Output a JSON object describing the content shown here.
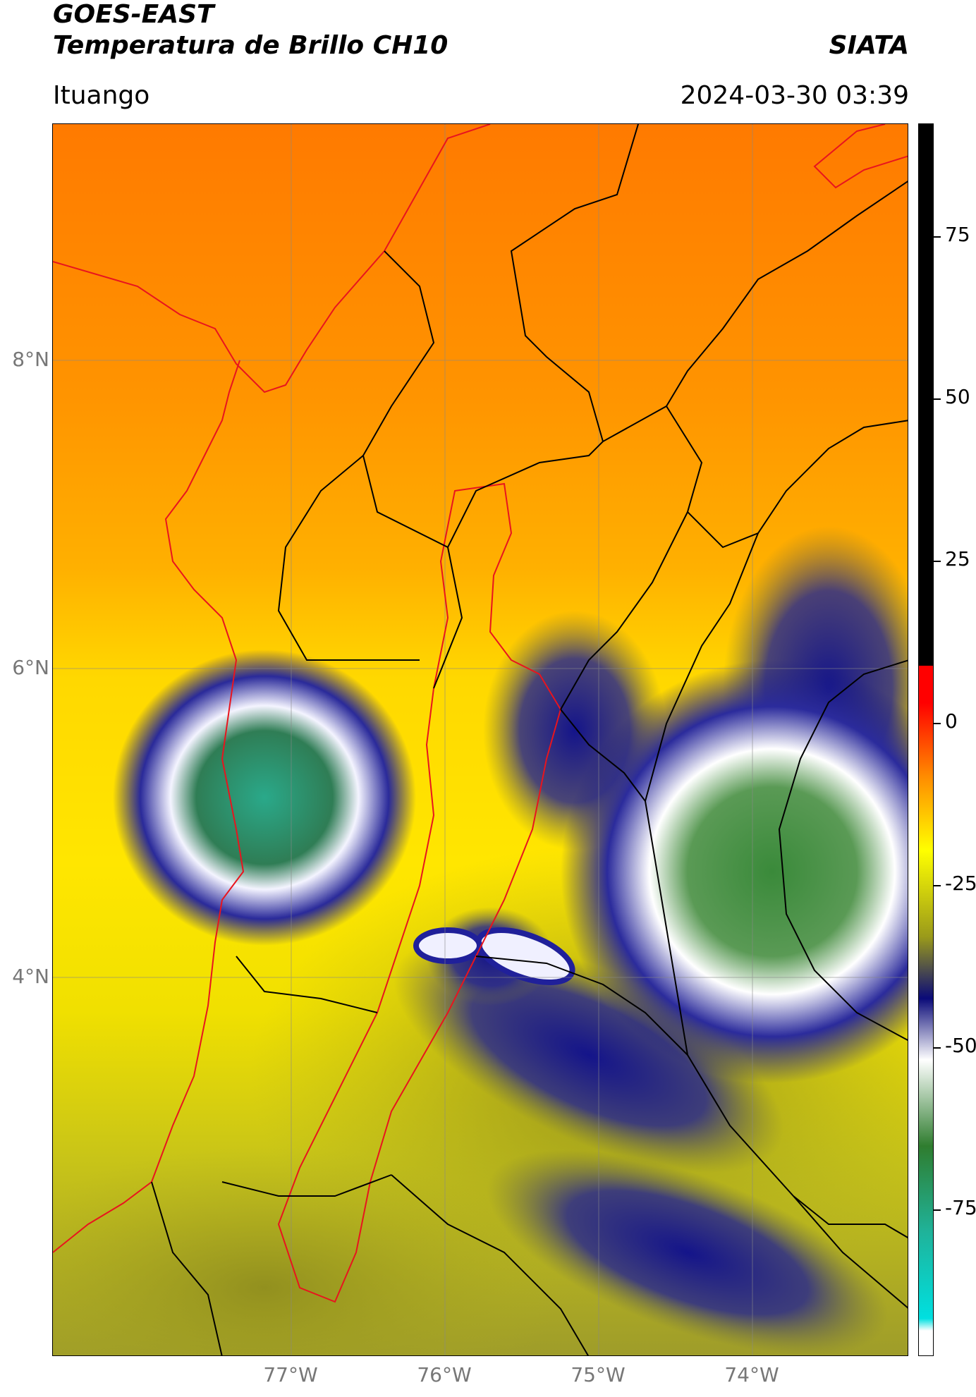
{
  "header": {
    "title_line1": "GOES-EAST",
    "title_line2": "Temperatura de Brillo CH10",
    "org": "SIATA",
    "location": "Ituango",
    "datetime": "2024-03-30 03:39"
  },
  "map": {
    "lat_labels": [
      "8°N",
      "6°N",
      "4°N"
    ],
    "lon_labels": [
      "77°W",
      "76°W",
      "75°W",
      "74°W"
    ],
    "gridlines": true
  },
  "colorbar": {
    "ticks": [
      "75",
      "50",
      "25",
      "0",
      "-25",
      "-50",
      "-75"
    ],
    "colors": {
      "hot": "#000000",
      "warm_red": "#ff0000",
      "orange": "#ff8c00",
      "yellow": "#ffff00",
      "olive": "#9a9a1a",
      "navy": "#0a0a78",
      "white": "#ffffff",
      "green": "#2f7d2f",
      "teal": "#1fb39a",
      "cyan": "#00e0e0"
    }
  }
}
